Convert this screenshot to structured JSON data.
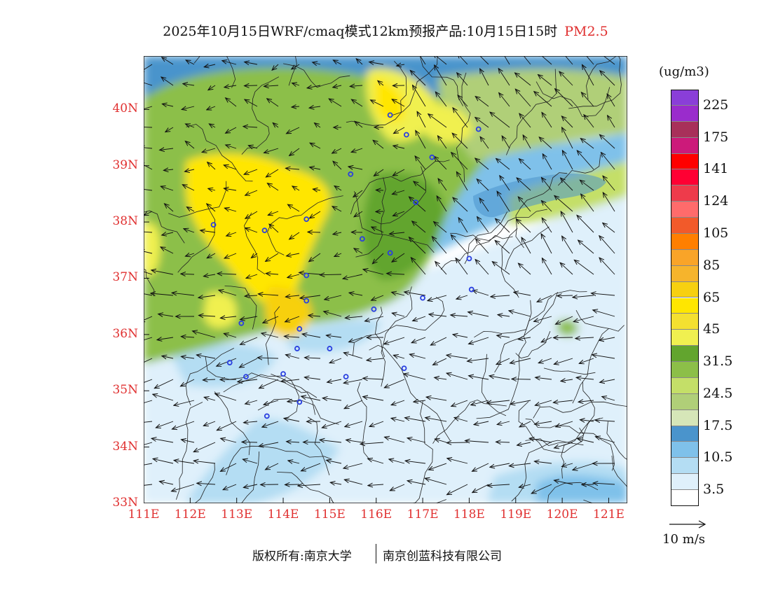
{
  "title": {
    "text": "2025年10月15日WRF/cmaq模式12km预报产品:10月15日15时",
    "pollutant": "PM2.5"
  },
  "map": {
    "lat_range": [
      33,
      40.95
    ],
    "lon_range": [
      111,
      121.4
    ],
    "lat_labels": [
      {
        "lat": 40,
        "label": "40N"
      },
      {
        "lat": 39,
        "label": "39N"
      },
      {
        "lat": 38,
        "label": "38N"
      },
      {
        "lat": 37,
        "label": "37N"
      },
      {
        "lat": 36,
        "label": "36N"
      },
      {
        "lat": 35,
        "label": "35N"
      },
      {
        "lat": 34,
        "label": "34N"
      },
      {
        "lat": 33,
        "label": "33N"
      }
    ],
    "lon_labels": [
      {
        "lon": 111,
        "label": "111E"
      },
      {
        "lon": 112,
        "label": "112E"
      },
      {
        "lon": 113,
        "label": "113E"
      },
      {
        "lon": 114,
        "label": "114E"
      },
      {
        "lon": 115,
        "label": "115E"
      },
      {
        "lon": 116,
        "label": "116E"
      },
      {
        "lon": 117,
        "label": "117E"
      },
      {
        "lon": 118,
        "label": "118E"
      },
      {
        "lon": 119,
        "label": "119E"
      },
      {
        "lon": 120,
        "label": "120E"
      },
      {
        "lon": 121,
        "label": "121E"
      }
    ],
    "tick_color": "#e03030",
    "stations": [
      [
        116.3,
        39.9
      ],
      [
        116.65,
        39.55
      ],
      [
        117.2,
        39.15
      ],
      [
        118.2,
        39.65
      ],
      [
        115.45,
        38.85
      ],
      [
        116.85,
        38.35
      ],
      [
        114.5,
        38.05
      ],
      [
        113.6,
        37.85
      ],
      [
        112.5,
        37.95
      ],
      [
        115.7,
        37.7
      ],
      [
        116.3,
        37.45
      ],
      [
        118.0,
        37.35
      ],
      [
        114.5,
        37.05
      ],
      [
        114.5,
        36.6
      ],
      [
        117.0,
        36.65
      ],
      [
        118.05,
        36.8
      ],
      [
        115.95,
        36.45
      ],
      [
        113.1,
        36.2
      ],
      [
        114.35,
        36.1
      ],
      [
        114.3,
        35.75
      ],
      [
        115.0,
        35.75
      ],
      [
        112.85,
        35.5
      ],
      [
        116.6,
        35.4
      ],
      [
        115.35,
        35.25
      ],
      [
        113.2,
        35.25
      ],
      [
        114.0,
        35.3
      ],
      [
        114.35,
        34.8
      ],
      [
        113.65,
        34.55
      ]
    ]
  },
  "colorbar": {
    "unit": "(ug/m3)",
    "bins": [
      {
        "color": "#ffffff",
        "label": ""
      },
      {
        "color": "#dff0fb",
        "label": "3.5"
      },
      {
        "color": "#b4ddf3",
        "label": ""
      },
      {
        "color": "#7fc1ea",
        "label": "10.5"
      },
      {
        "color": "#4a94cc",
        "label": ""
      },
      {
        "color": "#d6e6b8",
        "label": "17.5"
      },
      {
        "color": "#b0cf78",
        "label": ""
      },
      {
        "color": "#c4df68",
        "label": "24.5"
      },
      {
        "color": "#8cbf48",
        "label": ""
      },
      {
        "color": "#62a52e",
        "label": "31.5"
      },
      {
        "color": "#f0f050",
        "label": ""
      },
      {
        "color": "#f4e030",
        "label": "45"
      },
      {
        "color": "#ffe600",
        "label": ""
      },
      {
        "color": "#f7d010",
        "label": "65"
      },
      {
        "color": "#f6b42c",
        "label": ""
      },
      {
        "color": "#f9a428",
        "label": "85"
      },
      {
        "color": "#ff7f00",
        "label": ""
      },
      {
        "color": "#f25a2a",
        "label": "105"
      },
      {
        "color": "#ff6b6b",
        "label": ""
      },
      {
        "color": "#ee3b4b",
        "label": "124"
      },
      {
        "color": "#ff0033",
        "label": ""
      },
      {
        "color": "#ff0000",
        "label": "141"
      },
      {
        "color": "#cc1a7a",
        "label": ""
      },
      {
        "color": "#a8305a",
        "label": "175"
      },
      {
        "color": "#9a2ccc",
        "label": ""
      },
      {
        "color": "#8a3ed8",
        "label": "225"
      }
    ]
  },
  "wind_reference": {
    "label": "10 m/s",
    "speed": 10
  },
  "footer": {
    "copyright": "版权所有:南京大学",
    "company": "南京创蓝科技有限公司"
  }
}
